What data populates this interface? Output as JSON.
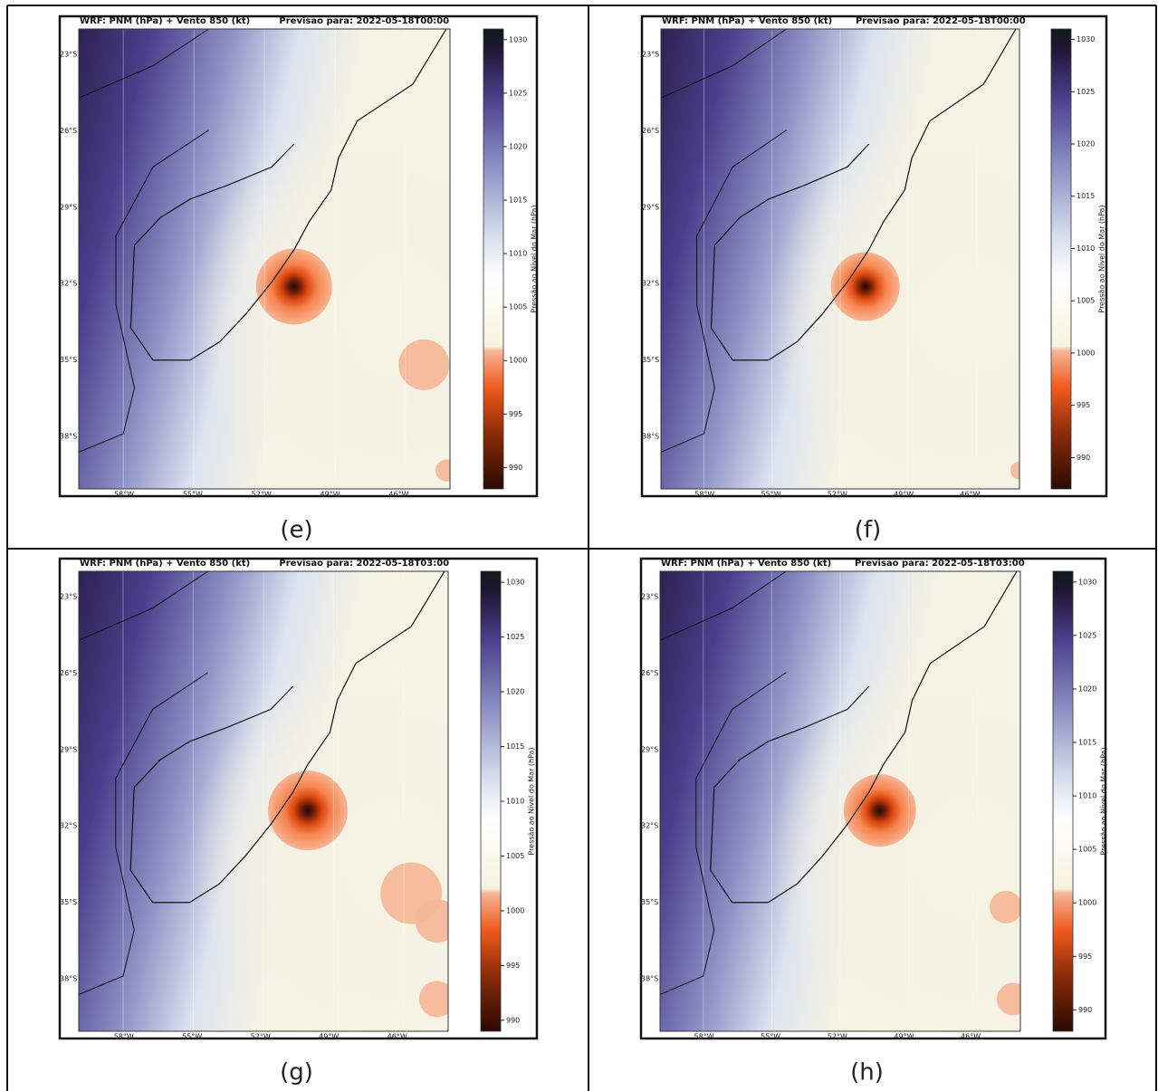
{
  "panels": [
    {
      "title": "WRF: PNM (hPa) + Vento 850 (kt)",
      "forecast": "Previsao para: 2022-05-18T00:00",
      "caption": "(e)",
      "lat_labels": [
        "23°S",
        "26°S",
        "29°S",
        "32°S",
        "35°S",
        "38°S"
      ],
      "lon_labels": [
        "58°W",
        "55°W",
        "52°W",
        "49°W",
        "46°W"
      ],
      "colorbar": {
        "label": "Pressão ao Nível do Mar (hPa)",
        "lim": [
          988,
          1031
        ],
        "ticks": [
          990,
          995,
          1000,
          1005,
          1010,
          1015,
          1020,
          1025,
          1030
        ]
      }
    },
    {
      "title": "WRF: PNM (hPa) + Vento 850 (kt)",
      "forecast": "Previsao para: 2022-05-18T00:00",
      "caption": "(f)",
      "lat_labels": [
        "23°S",
        "26°S",
        "29°S",
        "32°S",
        "35°S",
        "38°S"
      ],
      "lon_labels": [
        "58°W",
        "55°W",
        "52°W",
        "49°W",
        "46°W"
      ],
      "colorbar": {
        "label": "Pressão ao Nível do Mar (hPa)",
        "lim": [
          987,
          1031
        ],
        "ticks": [
          990,
          995,
          1000,
          1005,
          1010,
          1015,
          1020,
          1025,
          1030
        ]
      }
    },
    {
      "title": "WRF: PNM (hPa) + Vento 850 (kt)",
      "forecast": "Previsao para: 2022-05-18T03:00",
      "caption": "(g)",
      "lat_labels": [
        "23°S",
        "26°S",
        "29°S",
        "32°S",
        "35°S",
        "38°S"
      ],
      "lon_labels": [
        "58°W",
        "55°W",
        "52°W",
        "49°W",
        "46°W"
      ],
      "colorbar": {
        "label": "Pressão ao Nível do Mar (hPa)",
        "lim": [
          989,
          1031
        ],
        "ticks": [
          990,
          995,
          1000,
          1005,
          1010,
          1015,
          1020,
          1025,
          1030
        ]
      }
    },
    {
      "title": "WRF: PNM (hPa) + Vento 850 (kt)",
      "forecast": "Previsao para: 2022-05-18T03:00",
      "caption": "(h)",
      "lat_labels": [
        "23°S",
        "26°S",
        "29°S",
        "32°S",
        "35°S",
        "38°S"
      ],
      "lon_labels": [
        "58°W",
        "55°W",
        "52°W",
        "49°W",
        "46°W"
      ],
      "colorbar": {
        "label": "Pressão ao Nível do Mar (hPa)",
        "lim": [
          988,
          1031
        ],
        "ticks": [
          990,
          995,
          1000,
          1005,
          1010,
          1015,
          1020,
          1025,
          1030
        ]
      }
    }
  ]
}
